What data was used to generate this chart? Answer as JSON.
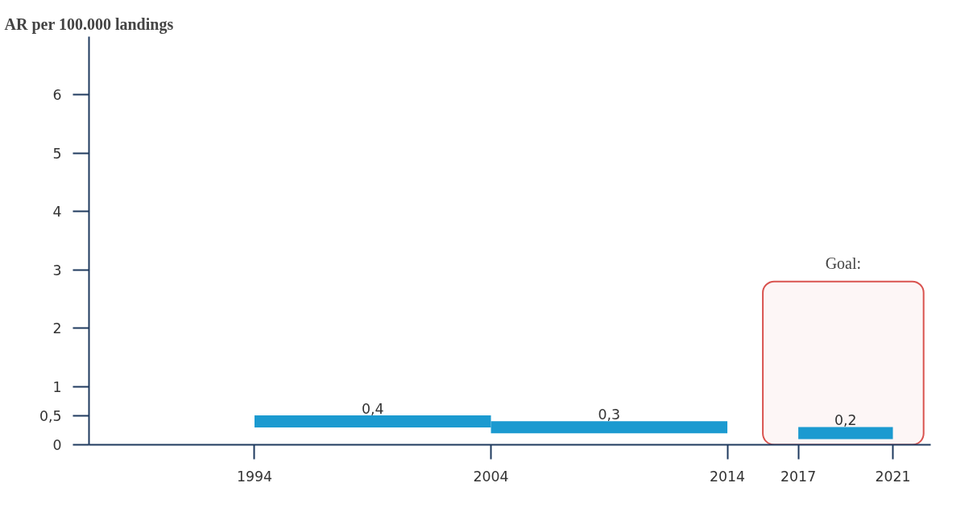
{
  "chart_data": {
    "type": "line",
    "ylabel": "AR per 100.000 landings",
    "series": [
      {
        "color": "#1b9ad0",
        "x": [
          1994,
          1999,
          2004
        ],
        "values": [
          0.4,
          0.4,
          0.4
        ],
        "value_labels": [
          null,
          "0,4",
          null
        ]
      },
      {
        "color": "#1b9ad0",
        "x": [
          2004,
          2009,
          2014
        ],
        "values": [
          0.3,
          0.3,
          0.3
        ],
        "value_labels": [
          null,
          "0,3",
          null
        ]
      },
      {
        "color": "#1b9ad0",
        "x": [
          2017,
          2019,
          2021
        ],
        "values": [
          0.2,
          0.2,
          0.2
        ],
        "value_labels": [
          null,
          "0,2",
          null
        ]
      }
    ],
    "bands": [
      {
        "axis": "x",
        "from": 2015.5,
        "to": 2022.3,
        "label": "Goal:",
        "color": "#d9534f"
      }
    ],
    "xlim": [
      1987,
      2022.6
    ],
    "xticks": [
      1994,
      2004,
      2014,
      2017,
      2021
    ],
    "ylim": [
      0,
      7
    ],
    "yticks": [
      0,
      {
        "value": 0.5,
        "label": "0,5"
      },
      1,
      2,
      3,
      4,
      5,
      6
    ],
    "grid": false
  }
}
